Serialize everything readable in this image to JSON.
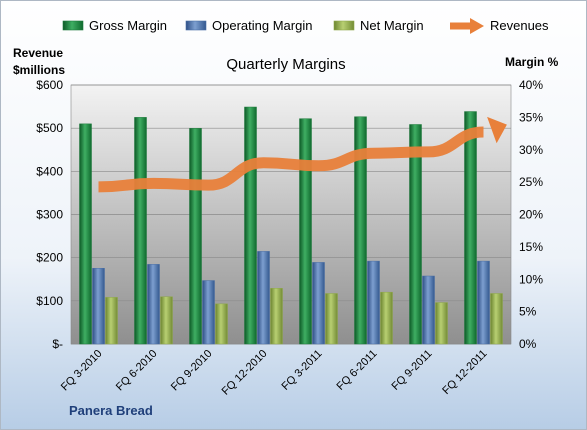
{
  "chart_data": {
    "type": "bar",
    "title": "Quarterly Margins",
    "left_axis_label_line1": "Revenue",
    "left_axis_label_line2": "$millions",
    "right_axis_label": "Margin %",
    "categories": [
      "FQ 3-2010",
      "FQ 6-2010",
      "FQ 9-2010",
      "FQ 12-2010",
      "FQ 3-2011",
      "FQ 6-2011",
      "FQ 9-2011",
      "FQ 12-2011"
    ],
    "y_left_ticks": [
      "$-",
      "$100",
      "$200",
      "$300",
      "$400",
      "$500",
      "$600"
    ],
    "y_right_ticks": [
      "0%",
      "5%",
      "10%",
      "15%",
      "20%",
      "25%",
      "30%",
      "35%",
      "40%"
    ],
    "ylim_left": [
      0,
      600
    ],
    "ylim_right": [
      0,
      40
    ],
    "grid": true,
    "legend_position": "top",
    "series": [
      {
        "name": "Gross Margin",
        "type": "bar",
        "axis": "right",
        "color": "#1e7b3c",
        "values": [
          34.0,
          35.0,
          33.3,
          36.6,
          34.8,
          35.1,
          33.9,
          35.9
        ]
      },
      {
        "name": "Operating Margin",
        "type": "bar",
        "axis": "right",
        "color": "#4a6fa5",
        "values": [
          11.7,
          12.3,
          9.8,
          14.3,
          12.6,
          12.8,
          10.5,
          12.8
        ]
      },
      {
        "name": "Net Margin",
        "type": "bar",
        "axis": "right",
        "color": "#8fa84a",
        "values": [
          7.2,
          7.3,
          6.2,
          8.6,
          7.8,
          8.0,
          6.4,
          7.8
        ]
      },
      {
        "name": "Revenues",
        "type": "line",
        "axis": "left",
        "color": "#e8803a",
        "values": [
          364,
          372,
          368,
          420,
          413,
          442,
          445,
          491
        ]
      }
    ],
    "annotation": "Panera Bread"
  }
}
